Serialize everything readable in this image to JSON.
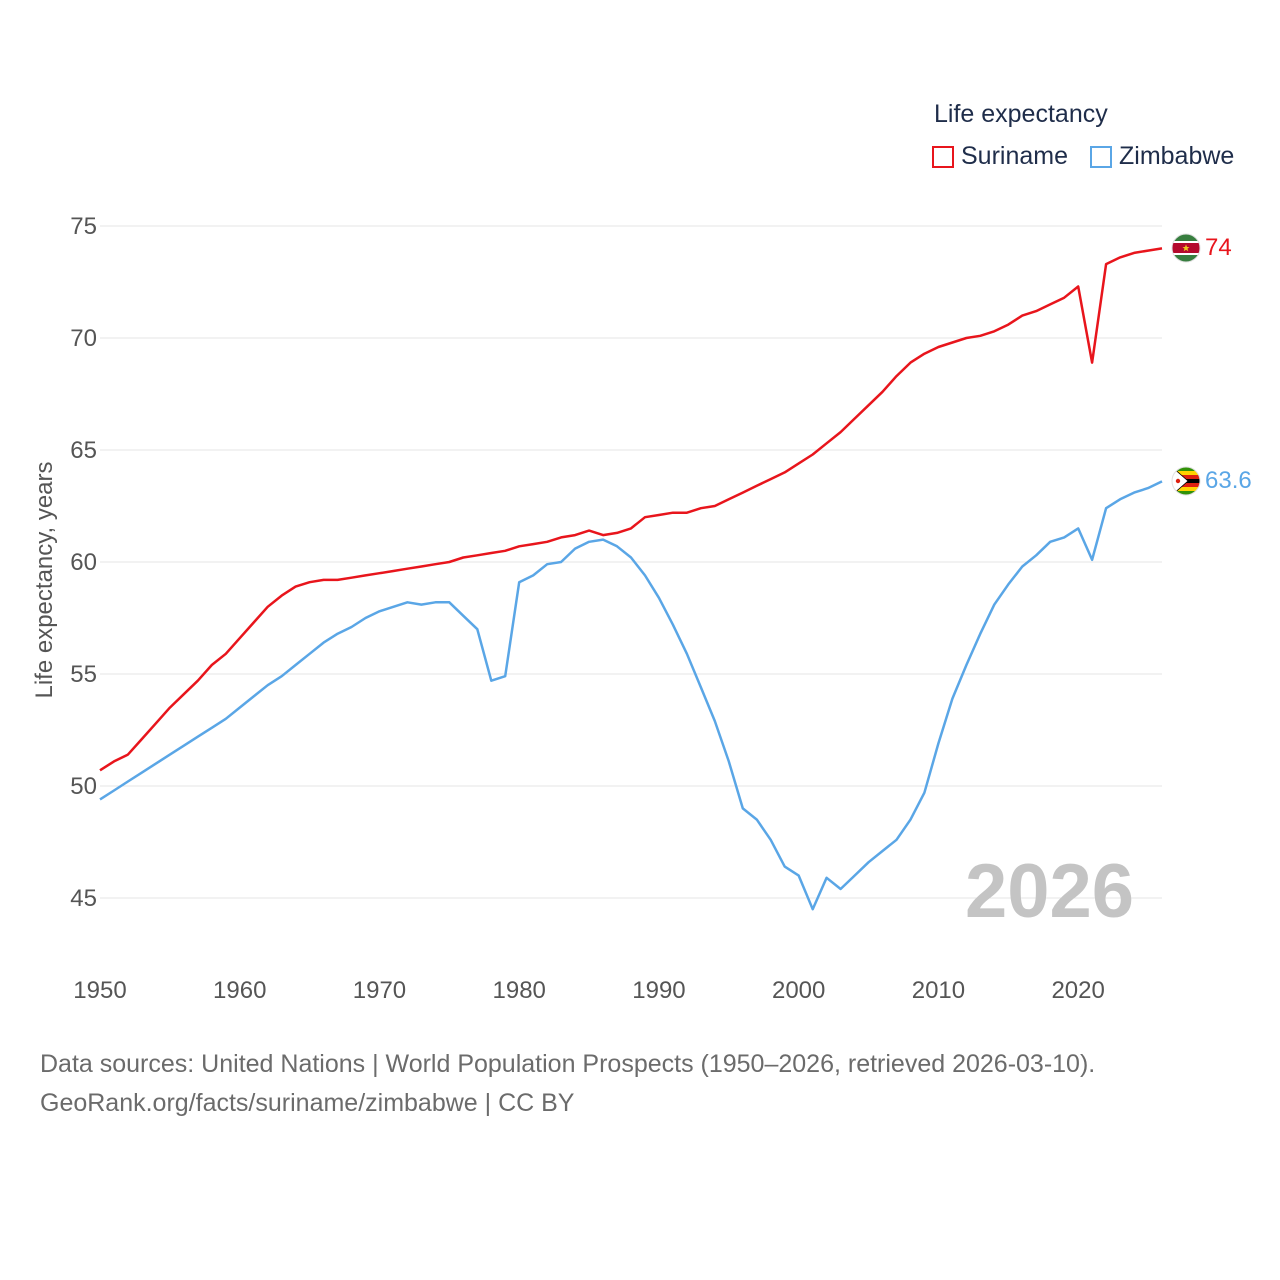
{
  "legend": {
    "title": "Life expectancy",
    "items": [
      {
        "name": "Suriname",
        "color": "#e8151c"
      },
      {
        "name": "Zimbabwe",
        "color": "#5aa6e6"
      }
    ]
  },
  "current_year": "2026",
  "end_labels": {
    "suriname": "74",
    "zimbabwe": "63.6"
  },
  "footer": {
    "line1": "Data sources: United Nations | World Population Prospects (1950–2026, retrieved 2026-03-10).",
    "line2": "GeoRank.org/facts/suriname/zimbabwe | CC BY"
  },
  "chart_data": {
    "type": "line",
    "ylabel": "Life expectancy, years",
    "xlabel": "",
    "xlim": [
      1950,
      2026
    ],
    "ylim": [
      44,
      76
    ],
    "yticks": [
      45,
      50,
      55,
      60,
      65,
      70,
      75
    ],
    "xticks": [
      1950,
      1960,
      1970,
      1980,
      1990,
      2000,
      2010,
      2020
    ],
    "x": [
      1950,
      1951,
      1952,
      1953,
      1954,
      1955,
      1956,
      1957,
      1958,
      1959,
      1960,
      1961,
      1962,
      1963,
      1964,
      1965,
      1966,
      1967,
      1968,
      1969,
      1970,
      1971,
      1972,
      1973,
      1974,
      1975,
      1976,
      1977,
      1978,
      1979,
      1980,
      1981,
      1982,
      1983,
      1984,
      1985,
      1986,
      1987,
      1988,
      1989,
      1990,
      1991,
      1992,
      1993,
      1994,
      1995,
      1996,
      1997,
      1998,
      1999,
      2000,
      2001,
      2002,
      2003,
      2004,
      2005,
      2006,
      2007,
      2008,
      2009,
      2010,
      2011,
      2012,
      2013,
      2014,
      2015,
      2016,
      2017,
      2018,
      2019,
      2020,
      2021,
      2022,
      2023,
      2024,
      2025,
      2026
    ],
    "series": [
      {
        "name": "Suriname",
        "color": "#e8151c",
        "values": [
          50.7,
          51.1,
          51.4,
          52.1,
          52.8,
          53.5,
          54.1,
          54.7,
          55.4,
          55.9,
          56.6,
          57.3,
          58.0,
          58.5,
          58.9,
          59.1,
          59.2,
          59.2,
          59.3,
          59.4,
          59.5,
          59.6,
          59.7,
          59.8,
          59.9,
          60.0,
          60.2,
          60.3,
          60.4,
          60.5,
          60.7,
          60.8,
          60.9,
          61.1,
          61.2,
          61.4,
          61.2,
          61.3,
          61.5,
          62.0,
          62.1,
          62.2,
          62.2,
          62.4,
          62.5,
          62.8,
          63.1,
          63.4,
          63.7,
          64.0,
          64.4,
          64.8,
          65.3,
          65.8,
          66.4,
          67.0,
          67.6,
          68.3,
          68.9,
          69.3,
          69.6,
          69.8,
          70.0,
          70.1,
          70.3,
          70.6,
          71.0,
          71.2,
          71.5,
          71.8,
          72.3,
          68.9,
          73.3,
          73.6,
          73.8,
          73.9,
          74.0
        ]
      },
      {
        "name": "Zimbabwe",
        "color": "#5aa6e6",
        "values": [
          49.4,
          49.8,
          50.2,
          50.6,
          51.0,
          51.4,
          51.8,
          52.2,
          52.6,
          53.0,
          53.5,
          54.0,
          54.5,
          54.9,
          55.4,
          55.9,
          56.4,
          56.8,
          57.1,
          57.5,
          57.8,
          58.0,
          58.2,
          58.1,
          58.2,
          58.2,
          57.6,
          57.0,
          54.7,
          54.9,
          59.1,
          59.4,
          59.9,
          60.0,
          60.6,
          60.9,
          61.0,
          60.7,
          60.2,
          59.4,
          58.4,
          57.2,
          55.9,
          54.4,
          52.9,
          51.1,
          49.0,
          48.5,
          47.6,
          46.4,
          46.0,
          44.5,
          45.9,
          45.4,
          46.0,
          46.6,
          47.1,
          47.6,
          48.5,
          49.7,
          51.9,
          53.9,
          55.4,
          56.8,
          58.1,
          59.0,
          59.8,
          60.3,
          60.9,
          61.1,
          61.5,
          60.1,
          62.4,
          62.8,
          63.1,
          63.3,
          63.6
        ]
      }
    ]
  }
}
